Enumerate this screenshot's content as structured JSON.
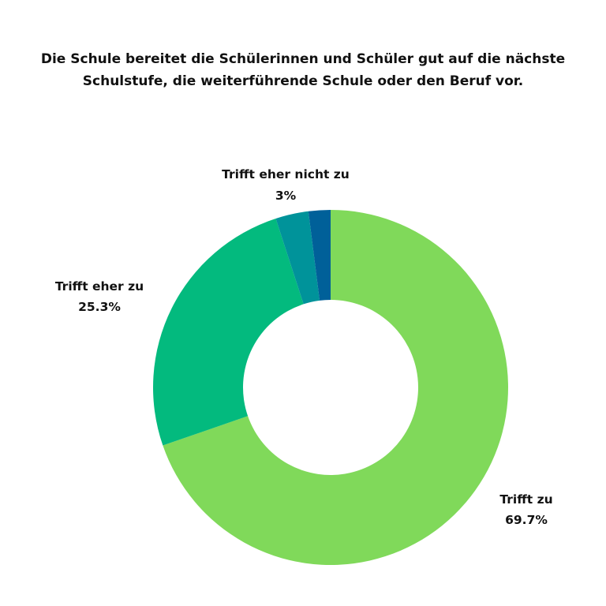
{
  "chart_data": {
    "type": "pie",
    "donut": true,
    "title_lines": [
      "Die Schule bereitet die Schülerinnen und Schüler gut auf die nächste",
      "Schulstufe, die weiterführende Schule oder den Beruf vor."
    ],
    "slices": [
      {
        "label": "Trifft zu",
        "value": 69.7,
        "value_label": "69.7%",
        "color": "#80d95a"
      },
      {
        "label": "Trifft eher zu",
        "value": 25.3,
        "value_label": "25.3%",
        "color": "#03ba7e"
      },
      {
        "label": "Trifft eher nicht zu",
        "value": 3,
        "value_label": "3%",
        "color": "#00939a"
      },
      {
        "label": "",
        "value": 2,
        "value_label": "",
        "color": "#006099"
      }
    ],
    "legend": "none"
  }
}
